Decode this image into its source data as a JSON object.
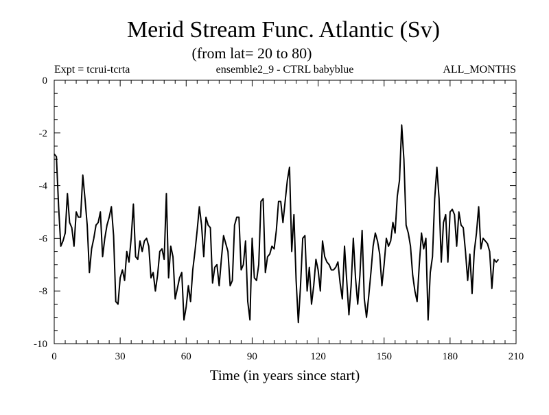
{
  "chart_data": {
    "type": "line",
    "title": "Merid Stream Func. Atlantic (Sv)",
    "subtitle": "(from lat= 20 to 80)",
    "info_left": "Expt = tcrui-tcrta",
    "info_center": "ensemble2_9 - CTRL babyblue",
    "info_right": "ALL_MONTHS",
    "xlabel": "Time (in years since start)",
    "ylabel": "",
    "xlim": [
      0,
      210
    ],
    "ylim": [
      -10,
      0
    ],
    "x_ticks": [
      0,
      30,
      60,
      90,
      120,
      150,
      180,
      210
    ],
    "y_ticks": [
      0,
      -2,
      -4,
      -6,
      -8,
      -10
    ],
    "x_tick_labels": [
      "0",
      "30",
      "60",
      "90",
      "120",
      "150",
      "180",
      "210"
    ],
    "y_tick_labels": [
      "0",
      "-2",
      "-4",
      "-6",
      "-8",
      "-10"
    ],
    "x_start": 0,
    "x_step": 1,
    "series": [
      {
        "name": "ensemble2_9 - CTRL babyblue",
        "values": [
          -2.8,
          -2.9,
          -4.8,
          -6.3,
          -6.1,
          -5.8,
          -4.3,
          -5.4,
          -5.6,
          -6.3,
          -5.0,
          -5.2,
          -5.2,
          -3.6,
          -4.5,
          -5.5,
          -7.3,
          -6.4,
          -6.0,
          -5.5,
          -5.4,
          -5.0,
          -6.7,
          -6.0,
          -5.5,
          -5.2,
          -4.8,
          -5.9,
          -8.4,
          -8.5,
          -7.5,
          -7.2,
          -7.6,
          -6.5,
          -6.9,
          -6.0,
          -4.7,
          -6.7,
          -6.8,
          -6.1,
          -6.5,
          -6.1,
          -6.0,
          -6.3,
          -7.5,
          -7.3,
          -8.0,
          -7.4,
          -6.5,
          -6.4,
          -6.8,
          -4.3,
          -7.5,
          -6.3,
          -6.7,
          -8.3,
          -7.9,
          -7.5,
          -7.3,
          -9.1,
          -8.6,
          -7.8,
          -8.4,
          -7.2,
          -6.5,
          -5.7,
          -4.8,
          -5.5,
          -6.7,
          -5.2,
          -5.5,
          -5.6,
          -7.7,
          -7.1,
          -7.0,
          -7.8,
          -6.8,
          -5.9,
          -6.2,
          -6.5,
          -7.8,
          -7.6,
          -5.5,
          -5.2,
          -5.2,
          -7.2,
          -7.0,
          -6.1,
          -8.4,
          -9.1,
          -6.0,
          -7.5,
          -7.6,
          -7.0,
          -4.6,
          -4.5,
          -7.3,
          -6.7,
          -6.6,
          -6.3,
          -6.4,
          -5.7,
          -4.6,
          -4.6,
          -5.4,
          -4.6,
          -3.8,
          -3.3,
          -6.5,
          -5.1,
          -7.6,
          -9.2,
          -7.8,
          -6.0,
          -5.9,
          -8.0,
          -7.1,
          -8.5,
          -7.8,
          -6.8,
          -7.2,
          -8.0,
          -6.1,
          -6.7,
          -6.9,
          -7.0,
          -7.2,
          -7.2,
          -7.1,
          -6.9,
          -7.7,
          -8.3,
          -6.3,
          -7.6,
          -8.9,
          -7.8,
          -6.0,
          -7.5,
          -8.5,
          -7.4,
          -5.7,
          -8.3,
          -9.0,
          -8.2,
          -7.3,
          -6.3,
          -5.8,
          -6.1,
          -6.6,
          -7.8,
          -7.0,
          -6.0,
          -6.3,
          -6.1,
          -5.4,
          -5.8,
          -4.4,
          -3.8,
          -1.7,
          -3.0,
          -5.5,
          -5.8,
          -6.3,
          -7.4,
          -8.0,
          -8.4,
          -7.0,
          -5.8,
          -6.4,
          -6.0,
          -9.1,
          -7.3,
          -6.7,
          -4.5,
          -3.3,
          -4.5,
          -6.9,
          -5.4,
          -5.1,
          -6.9,
          -5.0,
          -4.9,
          -5.1,
          -6.3,
          -5.0,
          -5.5,
          -5.6,
          -6.5,
          -7.6,
          -6.6,
          -8.1,
          -6.5,
          -5.8,
          -4.8,
          -6.4,
          -6.0,
          -6.1,
          -6.2,
          -6.5,
          -7.9,
          -6.8,
          -6.9,
          -6.8
        ]
      }
    ]
  }
}
